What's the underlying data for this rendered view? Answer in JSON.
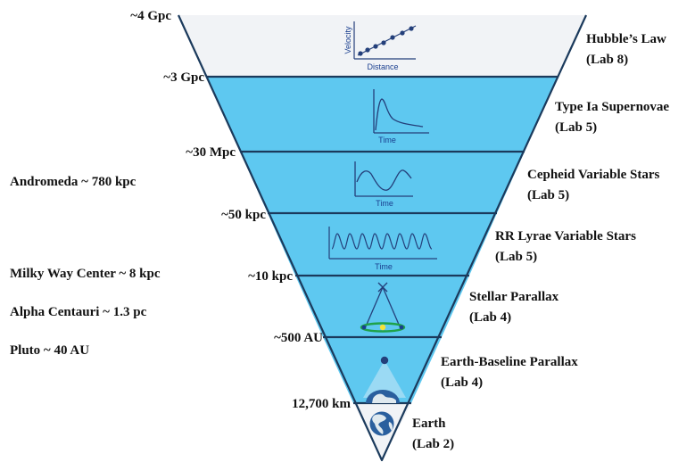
{
  "colors": {
    "top_band": "#f1f3f6",
    "band": "#5ec8f0",
    "outline": "#1b3a5c",
    "graph": "#243f7a",
    "globe_ocean": "#2a5f9e",
    "globe_land": "#dfe9ef"
  },
  "distances": {
    "gpc4": "~4 Gpc",
    "gpc3": "~3 Gpc",
    "mpc30": "~30 Mpc",
    "kpc50": "~50 kpc",
    "kpc10": "~10 kpc",
    "au500": "~500 AU",
    "km12700": "12,700 km"
  },
  "methods": [
    {
      "name": "Hubble’s Law",
      "lab": "(Lab 8)"
    },
    {
      "name": "Type Ia Supernovae",
      "lab": "(Lab 5)"
    },
    {
      "name": "Cepheid Variable Stars",
      "lab": "(Lab 5)"
    },
    {
      "name": "RR Lyrae Variable Stars",
      "lab": "(Lab 5)"
    },
    {
      "name": "Stellar Parallax",
      "lab": "(Lab 4)"
    },
    {
      "name": "Earth-Baseline Parallax",
      "lab": "(Lab 4)"
    },
    {
      "name": "Earth",
      "lab": "(Lab 2)"
    }
  ],
  "references": {
    "andromeda": "Andromeda ~ 780 kpc",
    "milky_way": "Milky Way Center ~ 8 kpc",
    "alpha_centauri": "Alpha Centauri ~ 1.3 pc",
    "pluto": "Pluto ~ 40 AU"
  },
  "graphs": {
    "hubble": {
      "ylabel": "Velocity",
      "xlabel": "Distance"
    },
    "supernova": {
      "xlabel": "Time"
    },
    "cepheid": {
      "xlabel": "Time"
    },
    "rrlyrae": {
      "xlabel": "Time"
    }
  }
}
